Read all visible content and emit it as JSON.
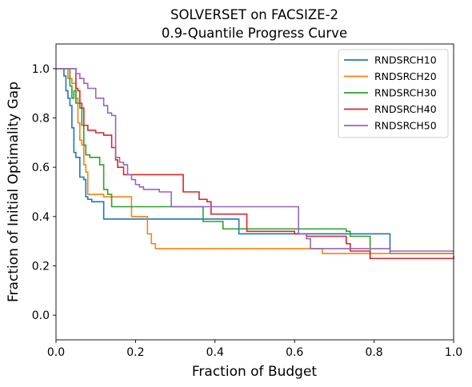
{
  "chart_data": {
    "type": "line",
    "step": true,
    "title": "SOLVERSET on FACSIZE-2",
    "subtitle": "0.9-Quantile Progress Curve",
    "xlabel": "Fraction of Budget",
    "ylabel": "Fraction of Initial Optimality Gap",
    "xlim": [
      0,
      1
    ],
    "ylim": [
      -0.1,
      1.1
    ],
    "xticks": [
      0,
      0.2,
      0.4,
      0.6,
      0.8,
      1
    ],
    "xtick_labels": [
      "0.0",
      "0.2",
      "0.4",
      "0.6",
      "0.8",
      "1.0"
    ],
    "yticks": [
      0,
      0.2,
      0.4,
      0.6,
      0.8,
      1
    ],
    "ytick_labels": [
      "0.0",
      "0.2",
      "0.4",
      "0.6",
      "0.8",
      "1.0"
    ],
    "grid": false,
    "legend_position": "upper right",
    "series": [
      {
        "name": "RNDSRCH10",
        "color": "#1f77b4",
        "x": [
          0,
          0.01,
          0.02,
          0.025,
          0.03,
          0.035,
          0.04,
          0.045,
          0.05,
          0.06,
          0.07,
          0.075,
          0.08,
          0.09,
          0.12,
          0.46,
          0.84,
          1.0
        ],
        "y": [
          1.0,
          1.0,
          0.97,
          0.91,
          0.88,
          0.85,
          0.76,
          0.66,
          0.64,
          0.56,
          0.55,
          0.48,
          0.47,
          0.46,
          0.39,
          0.33,
          0.25,
          0.25
        ]
      },
      {
        "name": "RNDSRCH20",
        "color": "#ff7f0e",
        "x": [
          0,
          0.03,
          0.04,
          0.05,
          0.055,
          0.06,
          0.065,
          0.07,
          0.075,
          0.08,
          0.12,
          0.19,
          0.23,
          0.24,
          0.25,
          0.67,
          1.0
        ],
        "y": [
          1.0,
          0.96,
          0.94,
          0.88,
          0.78,
          0.71,
          0.69,
          0.61,
          0.58,
          0.49,
          0.48,
          0.4,
          0.33,
          0.29,
          0.27,
          0.25,
          0.25
        ]
      },
      {
        "name": "RNDSRCH30",
        "color": "#2ca02c",
        "x": [
          0,
          0.035,
          0.04,
          0.045,
          0.05,
          0.06,
          0.065,
          0.07,
          0.075,
          0.085,
          0.1,
          0.11,
          0.12,
          0.13,
          0.14,
          0.3,
          0.37,
          0.42,
          0.73,
          0.74,
          0.79,
          1.0
        ],
        "y": [
          1.0,
          0.93,
          0.88,
          0.91,
          0.86,
          0.84,
          0.77,
          0.69,
          0.65,
          0.64,
          0.64,
          0.61,
          0.51,
          0.49,
          0.44,
          0.44,
          0.38,
          0.35,
          0.34,
          0.32,
          0.23,
          0.24
        ]
      },
      {
        "name": "RNDSRCH40",
        "color": "#d62728",
        "x": [
          0,
          0.05,
          0.055,
          0.06,
          0.065,
          0.07,
          0.08,
          0.1,
          0.12,
          0.14,
          0.15,
          0.155,
          0.17,
          0.2,
          0.32,
          0.36,
          0.38,
          0.39,
          0.48,
          0.6,
          0.63,
          0.73,
          0.74,
          0.79,
          1.0
        ],
        "y": [
          1.0,
          0.92,
          0.91,
          0.86,
          0.84,
          0.77,
          0.75,
          0.74,
          0.73,
          0.68,
          0.63,
          0.6,
          0.57,
          0.57,
          0.5,
          0.47,
          0.46,
          0.41,
          0.34,
          0.33,
          0.32,
          0.29,
          0.26,
          0.23,
          0.23
        ]
      },
      {
        "name": "RNDSRCH50",
        "color": "#9467bd",
        "x": [
          0,
          0.01,
          0.02,
          0.05,
          0.06,
          0.07,
          0.08,
          0.1,
          0.12,
          0.13,
          0.14,
          0.15,
          0.16,
          0.17,
          0.18,
          0.19,
          0.2,
          0.21,
          0.22,
          0.26,
          0.29,
          0.61,
          0.63,
          0.64,
          0.84,
          1.0
        ],
        "y": [
          1.0,
          1.0,
          1.0,
          0.98,
          0.96,
          0.94,
          0.92,
          0.88,
          0.85,
          0.82,
          0.81,
          0.64,
          0.62,
          0.61,
          0.57,
          0.55,
          0.53,
          0.52,
          0.51,
          0.5,
          0.44,
          0.33,
          0.31,
          0.27,
          0.26,
          0.26
        ]
      }
    ]
  }
}
